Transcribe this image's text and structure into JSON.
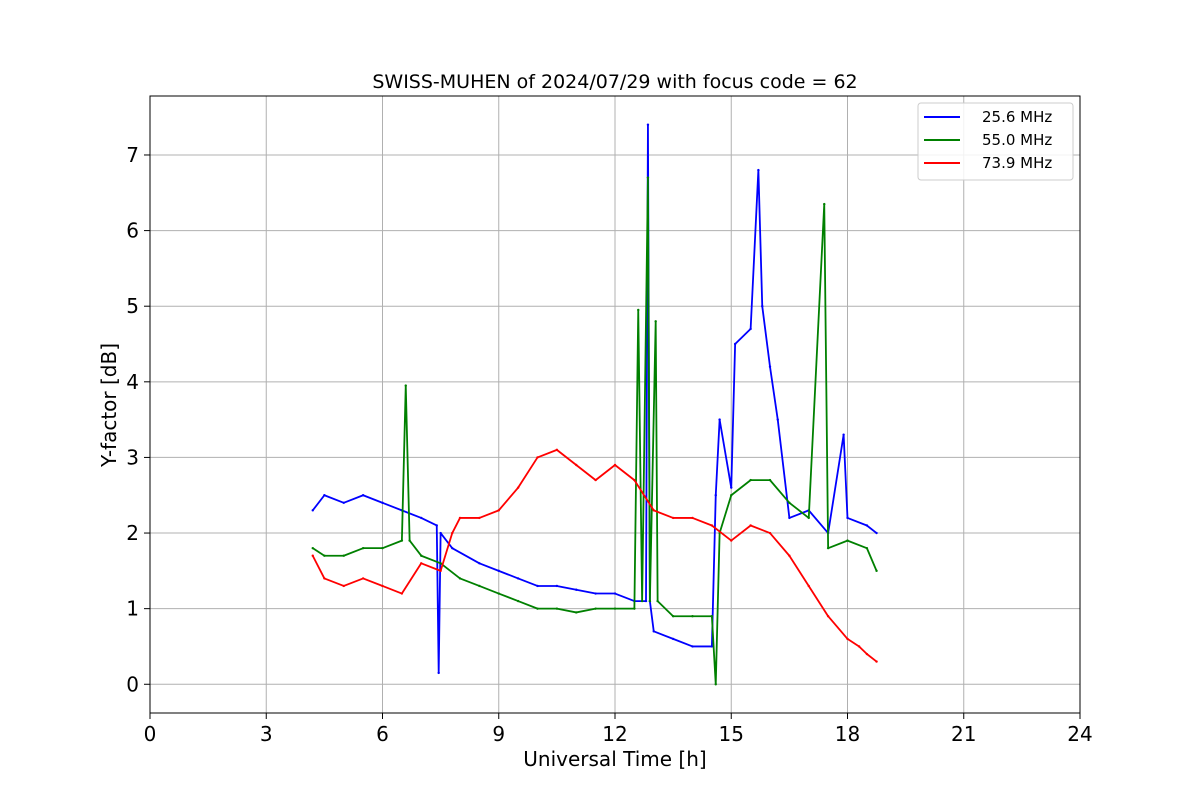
{
  "chart_data": {
    "type": "line",
    "title": "SWISS-MUHEN of 2024/07/29 with focus code = 62",
    "xlabel": "Universal Time [h]",
    "ylabel": "Y-factor [dB]",
    "xlim": [
      0,
      24
    ],
    "ylim": [
      -0.38,
      7.78
    ],
    "xticks": [
      0,
      3,
      6,
      9,
      12,
      15,
      18,
      21,
      24
    ],
    "yticks": [
      0,
      1,
      2,
      3,
      4,
      5,
      6,
      7
    ],
    "grid": true,
    "legend_position": "top-right",
    "series": [
      {
        "name": "25.6 MHz",
        "color": "#0000ff",
        "points": [
          [
            4.2,
            2.3
          ],
          [
            4.5,
            2.5
          ],
          [
            5.0,
            2.4
          ],
          [
            5.5,
            2.5
          ],
          [
            6.0,
            2.4
          ],
          [
            6.5,
            2.3
          ],
          [
            7.0,
            2.2
          ],
          [
            7.4,
            2.1
          ],
          [
            7.45,
            0.15
          ],
          [
            7.5,
            2.0
          ],
          [
            7.8,
            1.8
          ],
          [
            8.5,
            1.6
          ],
          [
            9.0,
            1.5
          ],
          [
            9.5,
            1.4
          ],
          [
            10.0,
            1.3
          ],
          [
            10.5,
            1.3
          ],
          [
            11.0,
            1.25
          ],
          [
            11.5,
            1.2
          ],
          [
            12.0,
            1.2
          ],
          [
            12.5,
            1.1
          ],
          [
            12.8,
            1.1
          ],
          [
            12.85,
            7.4
          ],
          [
            12.9,
            1.1
          ],
          [
            13.0,
            0.7
          ],
          [
            13.5,
            0.6
          ],
          [
            14.0,
            0.5
          ],
          [
            14.5,
            0.5
          ],
          [
            14.6,
            2.5
          ],
          [
            14.7,
            3.5
          ],
          [
            15.0,
            2.6
          ],
          [
            15.1,
            4.5
          ],
          [
            15.5,
            4.7
          ],
          [
            15.7,
            6.8
          ],
          [
            15.8,
            5.0
          ],
          [
            16.0,
            4.2
          ],
          [
            16.2,
            3.5
          ],
          [
            16.5,
            2.2
          ],
          [
            17.0,
            2.3
          ],
          [
            17.5,
            2.0
          ],
          [
            17.9,
            3.3
          ],
          [
            18.0,
            2.2
          ],
          [
            18.5,
            2.1
          ],
          [
            18.75,
            2.0
          ]
        ]
      },
      {
        "name": "55.0 MHz",
        "color": "#008000",
        "points": [
          [
            4.2,
            1.8
          ],
          [
            4.5,
            1.7
          ],
          [
            5.0,
            1.7
          ],
          [
            5.5,
            1.8
          ],
          [
            6.0,
            1.8
          ],
          [
            6.5,
            1.9
          ],
          [
            6.6,
            3.95
          ],
          [
            6.7,
            1.9
          ],
          [
            7.0,
            1.7
          ],
          [
            7.5,
            1.6
          ],
          [
            8.0,
            1.4
          ],
          [
            8.5,
            1.3
          ],
          [
            9.0,
            1.2
          ],
          [
            9.5,
            1.1
          ],
          [
            10.0,
            1.0
          ],
          [
            10.5,
            1.0
          ],
          [
            11.0,
            0.95
          ],
          [
            11.5,
            1.0
          ],
          [
            12.0,
            1.0
          ],
          [
            12.5,
            1.0
          ],
          [
            12.6,
            4.95
          ],
          [
            12.7,
            1.1
          ],
          [
            12.85,
            6.7
          ],
          [
            12.9,
            1.1
          ],
          [
            13.05,
            4.8
          ],
          [
            13.1,
            1.1
          ],
          [
            13.5,
            0.9
          ],
          [
            14.0,
            0.9
          ],
          [
            14.5,
            0.9
          ],
          [
            14.6,
            0.0
          ],
          [
            14.7,
            2.0
          ],
          [
            15.0,
            2.5
          ],
          [
            15.5,
            2.7
          ],
          [
            16.0,
            2.7
          ],
          [
            16.5,
            2.4
          ],
          [
            17.0,
            2.2
          ],
          [
            17.4,
            6.35
          ],
          [
            17.5,
            1.8
          ],
          [
            18.0,
            1.9
          ],
          [
            18.5,
            1.8
          ],
          [
            18.75,
            1.5
          ]
        ]
      },
      {
        "name": "73.9 MHz",
        "color": "#ff0000",
        "points": [
          [
            4.2,
            1.7
          ],
          [
            4.5,
            1.4
          ],
          [
            5.0,
            1.3
          ],
          [
            5.5,
            1.4
          ],
          [
            6.0,
            1.3
          ],
          [
            6.5,
            1.2
          ],
          [
            7.0,
            1.6
          ],
          [
            7.5,
            1.5
          ],
          [
            7.8,
            2.0
          ],
          [
            8.0,
            2.2
          ],
          [
            8.5,
            2.2
          ],
          [
            9.0,
            2.3
          ],
          [
            9.5,
            2.6
          ],
          [
            10.0,
            3.0
          ],
          [
            10.5,
            3.1
          ],
          [
            11.0,
            2.9
          ],
          [
            11.5,
            2.7
          ],
          [
            12.0,
            2.9
          ],
          [
            12.5,
            2.7
          ],
          [
            13.0,
            2.3
          ],
          [
            13.5,
            2.2
          ],
          [
            14.0,
            2.2
          ],
          [
            14.5,
            2.1
          ],
          [
            15.0,
            1.9
          ],
          [
            15.5,
            2.1
          ],
          [
            16.0,
            2.0
          ],
          [
            16.5,
            1.7
          ],
          [
            17.0,
            1.3
          ],
          [
            17.5,
            0.9
          ],
          [
            18.0,
            0.6
          ],
          [
            18.3,
            0.5
          ],
          [
            18.5,
            0.4
          ],
          [
            18.75,
            0.3
          ]
        ]
      }
    ]
  }
}
